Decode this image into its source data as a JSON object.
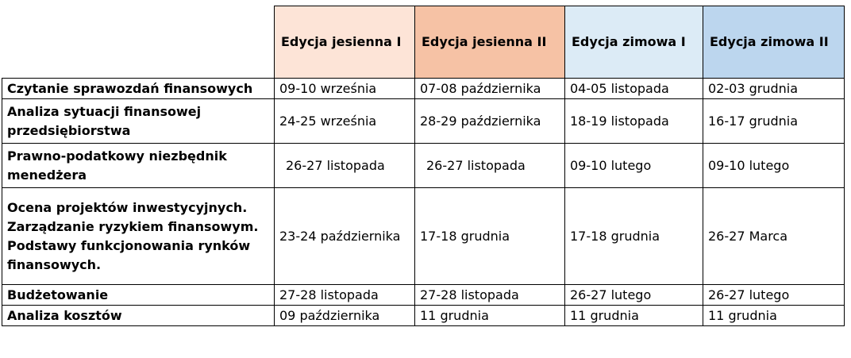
{
  "table": {
    "columns": [
      {
        "label": "Edycja jesienna I",
        "color": "#fde4d7"
      },
      {
        "label": "Edycja jesienna II",
        "color": "#f6c2a5"
      },
      {
        "label": "Edycja zimowa I",
        "color": "#dcebf6"
      },
      {
        "label": "Edycja zimowa II",
        "color": "#bcd6ee"
      }
    ],
    "rows": [
      {
        "label": "Czytanie sprawozdań finansowych",
        "cells": [
          "09-10 września",
          "07-08 października",
          "04-05 listopada",
          "02-03 grudnia"
        ]
      },
      {
        "label": "Analiza sytuacji finansowej przedsiębiorstwa",
        "cells": [
          "24-25 września",
          "28-29 października",
          "18-19 listopada",
          "16-17 grudnia"
        ]
      },
      {
        "label": "Prawno-podatkowy niezbędnik menedżera",
        "cells": [
          "26-27 listopada",
          "26-27 listopada",
          "09-10 lutego",
          "09-10 lutego"
        ]
      },
      {
        "label": "Ocena projektów inwestycyjnych. Zarządzanie ryzykiem finansowym. Podstawy funkcjonowania rynków finansowych.",
        "cells": [
          "23-24 października",
          "17-18 grudnia",
          "17-18 grudnia",
          "26-27 Marca"
        ]
      },
      {
        "label": "Budżetowanie",
        "cells": [
          "27-28 listopada",
          "27-28 listopada",
          "26-27 lutego",
          "26-27 lutego"
        ]
      },
      {
        "label": "Analiza kosztów",
        "cells": [
          "09 października",
          "11 grudnia",
          "11 grudnia",
          "11 grudnia"
        ]
      }
    ]
  }
}
